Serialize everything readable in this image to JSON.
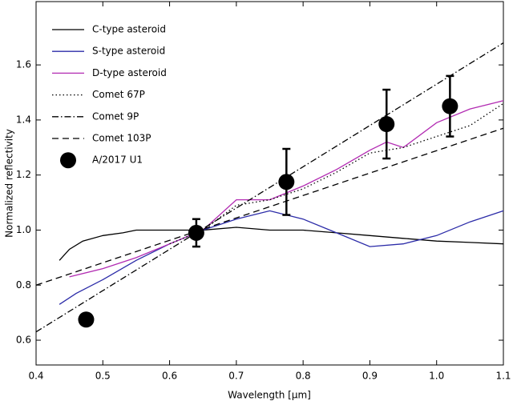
{
  "chart_data": {
    "type": "line",
    "xlabel": "Wavelength [μm]",
    "ylabel": "Normalized reflectivity",
    "xlim": [
      0.4,
      1.1
    ],
    "ylim": [
      0.51,
      1.83
    ],
    "xticks": [
      0.4,
      0.5,
      0.6,
      0.7,
      0.8,
      0.9,
      {
        "value": 1,
        "label": "1.0"
      },
      1.1
    ],
    "yticks": [
      0.6,
      0.8,
      {
        "value": 1,
        "label": "1.0"
      },
      1.2,
      1.4,
      1.6
    ],
    "legend": "upper left",
    "series": [
      {
        "name": "C-type asteroid",
        "color": "#000000",
        "linestyle": "solid",
        "x": [
          0.435,
          0.45,
          0.47,
          0.5,
          0.53,
          0.55,
          0.58,
          0.6,
          0.65,
          0.7,
          0.75,
          0.8,
          0.85,
          0.9,
          0.95,
          1.0,
          1.05,
          1.1
        ],
        "values": [
          0.89,
          0.93,
          0.96,
          0.98,
          0.99,
          1.0,
          1.0,
          1.0,
          1.0,
          1.01,
          1.0,
          1.0,
          0.99,
          0.98,
          0.97,
          0.96,
          0.955,
          0.95
        ]
      },
      {
        "name": "S-type asteroid",
        "color": "#2b2ba8",
        "linestyle": "solid",
        "x": [
          0.435,
          0.46,
          0.5,
          0.55,
          0.6,
          0.65,
          0.7,
          0.75,
          0.8,
          0.85,
          0.9,
          0.95,
          1.0,
          1.05,
          1.1
        ],
        "values": [
          0.73,
          0.77,
          0.82,
          0.89,
          0.95,
          1.0,
          1.04,
          1.07,
          1.04,
          0.99,
          0.94,
          0.95,
          0.98,
          1.03,
          1.07
        ]
      },
      {
        "name": "D-type asteroid",
        "color": "#b22bb2",
        "linestyle": "solid",
        "x": [
          0.45,
          0.5,
          0.55,
          0.6,
          0.65,
          0.7,
          0.75,
          0.8,
          0.85,
          0.9,
          0.925,
          0.95,
          1.0,
          1.05,
          1.1
        ],
        "values": [
          0.83,
          0.86,
          0.9,
          0.95,
          1.0,
          1.11,
          1.11,
          1.16,
          1.22,
          1.29,
          1.32,
          1.3,
          1.39,
          1.44,
          1.47
        ]
      },
      {
        "name": "Comet 67P",
        "color": "#000000",
        "linestyle": "dotted",
        "x": [
          0.6,
          0.65,
          0.7,
          0.75,
          0.8,
          0.85,
          0.9,
          0.95,
          1.0,
          1.05,
          1.1
        ],
        "values": [
          0.95,
          1.0,
          1.09,
          1.11,
          1.15,
          1.21,
          1.28,
          1.3,
          1.34,
          1.38,
          1.46
        ]
      },
      {
        "name": "Comet 9P",
        "color": "#000000",
        "linestyle": "dashdot",
        "x": [
          0.4,
          1.1
        ],
        "values": [
          0.63,
          1.68
        ]
      },
      {
        "name": "Comet 103P",
        "color": "#000000",
        "linestyle": "dashed",
        "x": [
          0.4,
          1.1
        ],
        "values": [
          0.8,
          1.37
        ]
      },
      {
        "name": "A/2017 U1",
        "color": "#000000",
        "marker": "circle",
        "x": [
          0.475,
          0.64,
          0.775,
          0.925,
          1.02
        ],
        "values": [
          0.675,
          0.99,
          1.175,
          1.385,
          1.45
        ],
        "errors": [
          null,
          0.05,
          0.12,
          0.125,
          0.11
        ]
      }
    ]
  }
}
